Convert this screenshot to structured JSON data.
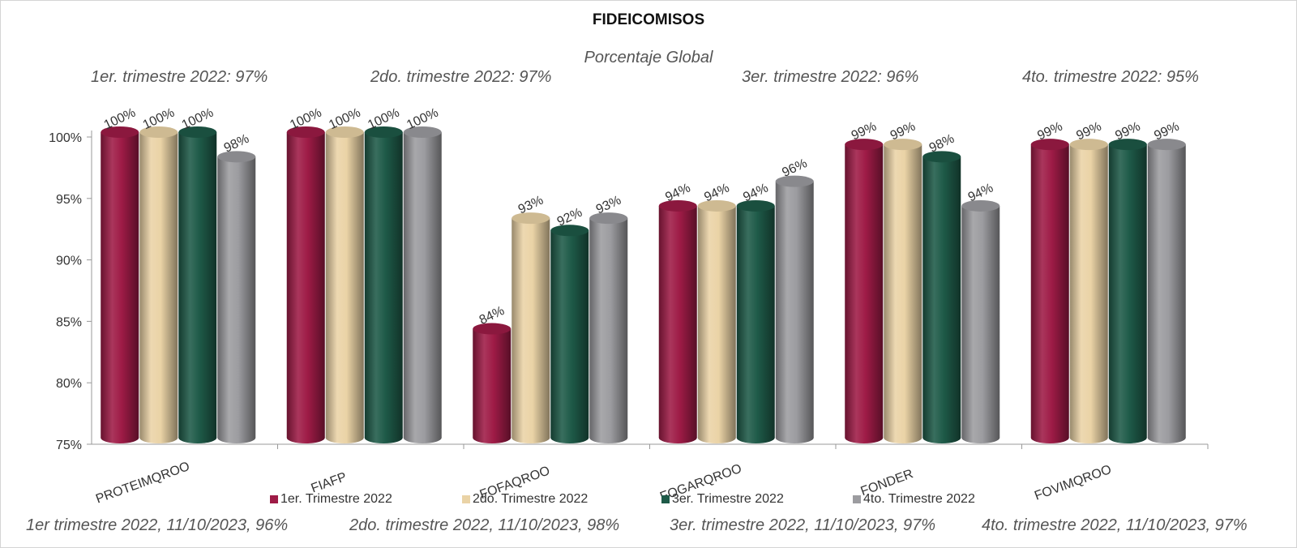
{
  "chart_data": {
    "type": "bar",
    "title": "FIDEICOMISOS",
    "subtitle": "Porcentaje Global",
    "categories": [
      "PROTEIMQROO",
      "FIAFP",
      "FOFAQROO",
      "FOGARQROO",
      "FONDER",
      "FOVIMQROO"
    ],
    "series": [
      {
        "name": "1er. Trimestre 2022",
        "color": "#9e1b46",
        "values": [
          100,
          100,
          84,
          94,
          99,
          99
        ]
      },
      {
        "name": "2do. Trimestre 2022",
        "color": "#ead3a6",
        "values": [
          100,
          100,
          93,
          94,
          99,
          99
        ]
      },
      {
        "name": "3er. Trimestre 2022",
        "color": "#1e5a48",
        "values": [
          100,
          100,
          92,
          94,
          98,
          99
        ]
      },
      {
        "name": "4to. Trimestre 2022",
        "color": "#9c9ca0",
        "values": [
          98,
          100,
          93,
          96,
          94,
          99
        ]
      }
    ],
    "ylim": [
      75,
      100
    ],
    "yticks": [
      "75%",
      "80%",
      "85%",
      "90%",
      "95%",
      "100%"
    ],
    "legend_position": "bottom"
  },
  "notes_top": [
    "1er. trimestre 2022: 97%",
    "2do. trimestre 2022: 97%",
    "3er. trimestre 2022: 96%",
    "4to. trimestre 2022: 95%"
  ],
  "notes_bottom": [
    "1er trimestre  2022,  11/10/2023, 96%",
    "2do. trimestre 2022, 11/10/2023, 98%",
    "3er. trimestre 2022, 11/10/2023, 97%",
    "4to. trimestre 2022, 11/10/2023, 97%"
  ]
}
